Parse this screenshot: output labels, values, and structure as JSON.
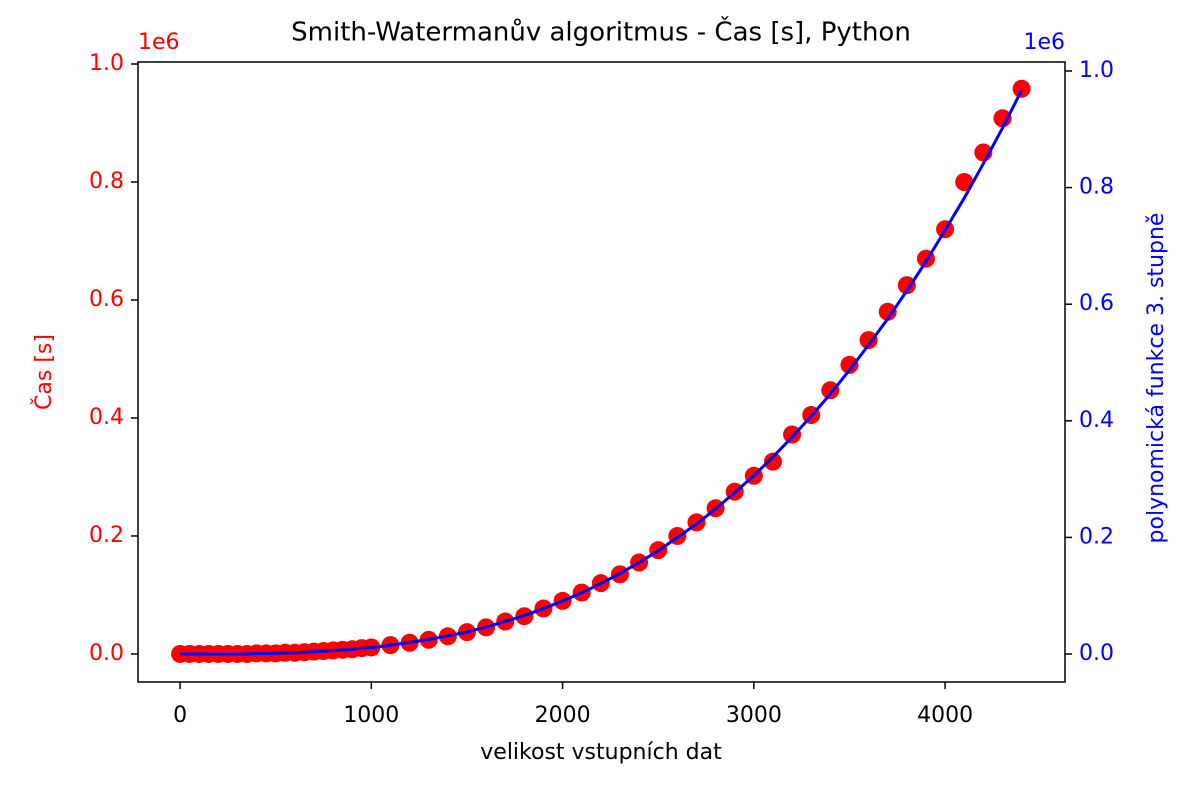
{
  "chart_data": {
    "type": "combo",
    "title": "Smith-Watermanův algoritmus - Čas [s], Python",
    "xlabel": "velikost vstupních dat",
    "ylabel": "Čas [s]",
    "y2label": "polynomická funkce 3. stupně",
    "y_offset": "1e6",
    "y2_offset": "1e6",
    "x": [
      0,
      50,
      100,
      150,
      200,
      250,
      300,
      350,
      400,
      450,
      500,
      550,
      600,
      650,
      700,
      750,
      800,
      850,
      900,
      950,
      1000,
      1100,
      1200,
      1300,
      1400,
      1500,
      1600,
      1700,
      1800,
      1900,
      2000,
      2100,
      2200,
      2300,
      2400,
      2500,
      2600,
      2700,
      2800,
      2900,
      3000,
      3100,
      3200,
      3300,
      3400,
      3500,
      3600,
      3700,
      3800,
      3900,
      4000,
      4100,
      4200,
      4300,
      4400
    ],
    "series": [
      {
        "type": "scatter",
        "color": "#ff0000",
        "axis": "y",
        "values": [
          0,
          0,
          0,
          0,
          0,
          0,
          0,
          0,
          0.001,
          0.001,
          0.001,
          0.002,
          0.002,
          0.003,
          0.004,
          0.005,
          0.006,
          0.007,
          0.008,
          0.01,
          0.011,
          0.015,
          0.019,
          0.024,
          0.03,
          0.037,
          0.045,
          0.055,
          0.064,
          0.077,
          0.09,
          0.104,
          0.12,
          0.135,
          0.155,
          0.176,
          0.2,
          0.223,
          0.247,
          0.275,
          0.302,
          0.326,
          0.372,
          0.405,
          0.447,
          0.49,
          0.532,
          0.58,
          0.625,
          0.67,
          0.72,
          0.8,
          0.85,
          0.908,
          0.958
        ]
      },
      {
        "type": "line",
        "color": "#0000ff",
        "axis": "y2",
        "values": [
          0,
          0,
          0,
          0,
          0,
          0,
          0,
          0,
          0.001,
          0.001,
          0.001,
          0.002,
          0.002,
          0.003,
          0.004,
          0.005,
          0.006,
          0.007,
          0.008,
          0.01,
          0.011,
          0.015,
          0.02,
          0.025,
          0.031,
          0.038,
          0.046,
          0.056,
          0.066,
          0.078,
          0.091,
          0.105,
          0.121,
          0.138,
          0.157,
          0.177,
          0.2,
          0.223,
          0.249,
          0.277,
          0.306,
          0.338,
          0.372,
          0.408,
          0.446,
          0.487,
          0.53,
          0.575,
          0.623,
          0.673,
          0.727,
          0.782,
          0.841,
          0.902,
          0.967
        ]
      }
    ],
    "xlim": [
      -220,
      4627
    ],
    "xticks": [
      0,
      1000,
      2000,
      3000,
      4000
    ],
    "ylim": [
      -0.0475,
      1.0034
    ],
    "yticks": [
      {
        "value": 0,
        "label": "0.0"
      },
      0.2,
      0.4,
      0.6,
      0.8,
      {
        "value": 1,
        "label": "1.0"
      }
    ],
    "y2lim": [
      -0.048,
      1.0154
    ],
    "y2ticks": [
      {
        "value": 0,
        "label": "0.0"
      },
      0.2,
      0.4,
      0.6,
      0.8,
      {
        "value": 1,
        "label": "1.0"
      }
    ]
  }
}
